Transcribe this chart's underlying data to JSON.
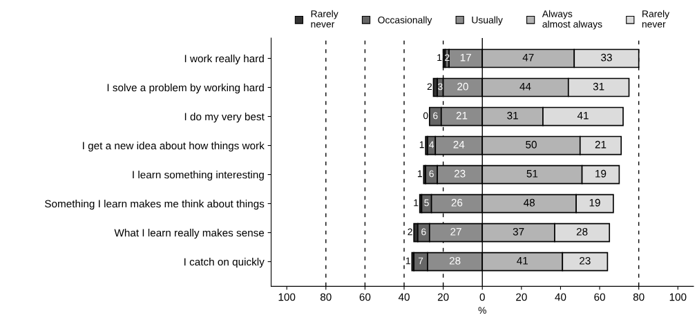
{
  "chart_data": {
    "type": "bar",
    "orientation": "horizontal",
    "xlabel": "%",
    "categories": [
      "I work really hard",
      "I solve a problem by working hard",
      "I do my very best",
      "I get a new idea about how things work",
      "I learn something interesting",
      "Something I learn makes me think about things",
      "What I learn really makes sense",
      "I catch on quickly"
    ],
    "series": [
      {
        "name": "Rarely\nnever",
        "color": "#333333",
        "values": [
          1,
          2,
          0,
          1,
          1,
          1,
          2,
          1
        ],
        "base": [
          -20,
          -25,
          -27,
          -29,
          -30,
          -32,
          -35,
          -36
        ]
      },
      {
        "name": "Occasionally",
        "color": "#666666",
        "values": [
          2,
          3,
          6,
          4,
          6,
          5,
          6,
          7
        ],
        "base": [
          -19,
          -23,
          -27,
          -28,
          -29,
          -31,
          -33,
          -35
        ]
      },
      {
        "name": "Usually",
        "color": "#8c8c8c",
        "values": [
          17,
          20,
          21,
          24,
          23,
          26,
          27,
          28
        ],
        "base": [
          -17,
          -20,
          -21,
          -24,
          -23,
          -26,
          -27,
          -28
        ]
      },
      {
        "name": "Always\nalmost always",
        "color": "#b4b4b4",
        "values": [
          47,
          44,
          31,
          50,
          51,
          48,
          37,
          41
        ],
        "base": [
          0,
          0,
          0,
          0,
          0,
          0,
          0,
          0
        ]
      },
      {
        "name": "Rarely\nnever",
        "color": "#dcdcdc",
        "values": [
          33,
          31,
          41,
          21,
          19,
          19,
          28,
          23
        ],
        "base": [
          47,
          44,
          31,
          50,
          51,
          48,
          37,
          41
        ]
      }
    ],
    "data_labels": true,
    "xlim": [
      -108,
      108
    ],
    "xticks": [
      {
        "value": -100,
        "label": "100"
      },
      {
        "value": -80,
        "label": "80"
      },
      {
        "value": -60,
        "label": "60"
      },
      {
        "value": -40,
        "label": "40"
      },
      {
        "value": -20,
        "label": "20"
      },
      0,
      20,
      40,
      60,
      80,
      100
    ],
    "ref_lines": [
      {
        "axis": "x",
        "value": -80,
        "line_style": "dashed",
        "color": "#000000"
      },
      {
        "axis": "x",
        "value": -60,
        "line_style": "dashed",
        "color": "#000000"
      },
      {
        "axis": "x",
        "value": -40,
        "line_style": "dashed",
        "color": "#000000"
      },
      {
        "axis": "x",
        "value": -20,
        "line_style": "dashed",
        "color": "#000000"
      },
      {
        "axis": "x",
        "value": 80,
        "line_style": "dashed",
        "color": "#000000"
      },
      {
        "axis": "x",
        "value": 0,
        "line_style": "solid",
        "color": "#000000"
      }
    ],
    "grid": false,
    "legend": "top"
  }
}
